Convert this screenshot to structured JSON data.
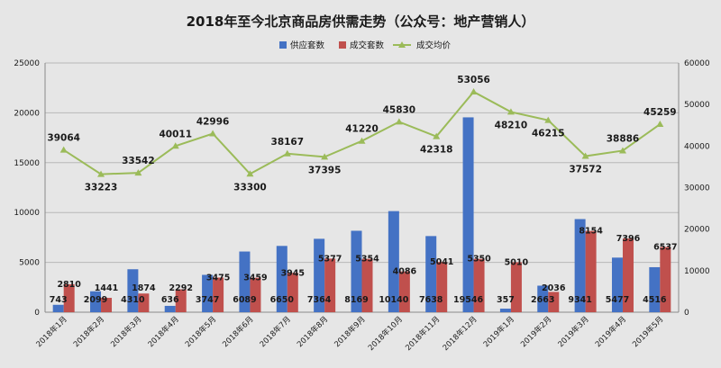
{
  "chart_data": {
    "type": "bar",
    "title": "2018年至今北京商品房供需走势（公众号：地产营销人）",
    "categories": [
      "2018年1月",
      "2018年2月",
      "2018年3月",
      "2018年4月",
      "2018年5月",
      "2018年6月",
      "2018年7月",
      "2018年8月",
      "2018年9月",
      "2018年10月",
      "2018年11月",
      "2018年12月",
      "2019年1月",
      "2019年2月",
      "2019年3月",
      "2019年4月",
      "2019年5月"
    ],
    "series": [
      {
        "name": "供应套数",
        "type": "bar",
        "axis": "left",
        "color": "#4472c4",
        "values": [
          743,
          2099,
          4310,
          636,
          3747,
          6089,
          6650,
          7364,
          8169,
          10140,
          7638,
          19546,
          357,
          2663,
          9341,
          5477,
          4516
        ]
      },
      {
        "name": "成交套数",
        "type": "bar",
        "axis": "left",
        "color": "#c0504d",
        "values": [
          2810,
          1441,
          1874,
          2292,
          3475,
          3459,
          3945,
          5377,
          5354,
          4086,
          5041,
          5350,
          5010,
          2036,
          8154,
          7396,
          6537
        ]
      },
      {
        "name": "成交均价",
        "type": "line",
        "axis": "right",
        "color": "#9bbb59",
        "values": [
          39064,
          33223,
          33542,
          40011,
          42996,
          33300,
          38167,
          37395,
          41220,
          45830,
          42318,
          53056,
          48210,
          46215,
          37572,
          38886,
          45259
        ]
      }
    ],
    "ylim_left": [
      0,
      25000
    ],
    "yticks_left": [
      "0",
      "5000",
      "10000",
      "15000",
      "20000",
      "25000"
    ],
    "ylim_right": [
      0,
      60000
    ],
    "yticks_right": [
      "0",
      "10000",
      "20000",
      "30000",
      "40000",
      "50000",
      "60000"
    ],
    "grid": true,
    "legend_position": "top-center"
  }
}
